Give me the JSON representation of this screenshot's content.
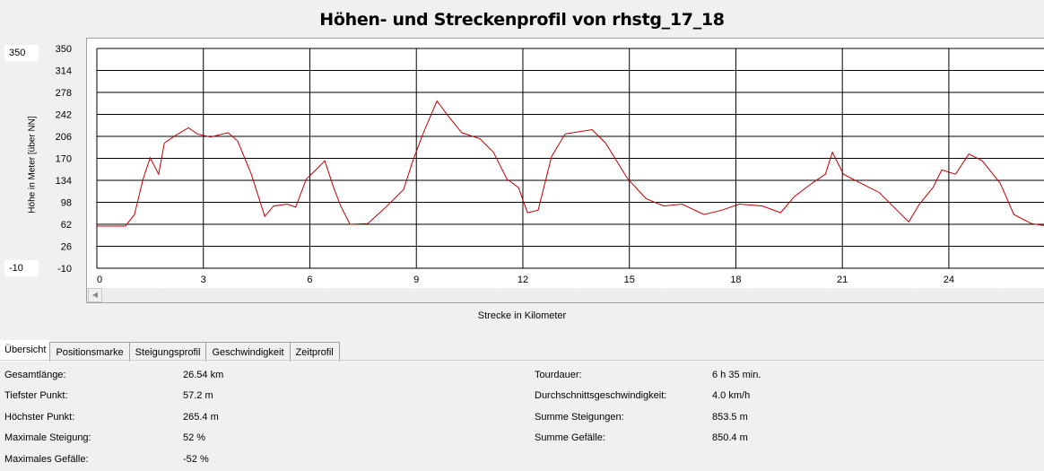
{
  "window": {
    "title": "Höhen- und Streckenprofil von rhstg_17_18"
  },
  "ybox_top": "350",
  "ybox_bottom": "-10",
  "chart_data": {
    "type": "line",
    "title": "Höhen- und Streckenprofil von rhstg_17_18",
    "xlabel": "Strecke in Kilometer",
    "ylabel": "Höhe in Meter [über NN]",
    "xlim": [
      0,
      26.68
    ],
    "ylim": [
      -10,
      350
    ],
    "xticks": [
      "0",
      "3",
      "6",
      "9",
      "12",
      "15",
      "18",
      "21",
      "24"
    ],
    "yticks": [
      "350",
      "314",
      "278",
      "242",
      "206",
      "170",
      "134",
      "98",
      "62",
      "26",
      "-10"
    ],
    "grid": true,
    "line_color": "#c00000",
    "series": [
      {
        "name": "Höhe",
        "x": [
          0,
          0.8,
          1.06,
          1.3,
          1.5,
          1.74,
          1.9,
          2.2,
          2.58,
          2.83,
          3.2,
          3.7,
          3.97,
          4.35,
          4.73,
          4.98,
          5.36,
          5.6,
          5.9,
          6.17,
          6.42,
          6.67,
          6.87,
          7.13,
          7.63,
          8.14,
          8.64,
          8.9,
          9.2,
          9.58,
          9.9,
          10.28,
          10.79,
          11.17,
          11.55,
          11.88,
          12.13,
          12.43,
          12.81,
          13.19,
          13.95,
          14.33,
          14.96,
          15.47,
          15.97,
          16.48,
          17.1,
          17.6,
          18.1,
          18.75,
          19.26,
          19.64,
          20.14,
          20.52,
          20.72,
          21.03,
          21.53,
          22.04,
          22.54,
          22.87,
          23.17,
          23.55,
          23.8,
          24.19,
          24.56,
          24.94,
          25.45,
          25.83,
          26.33,
          26.68
        ],
        "y": [
          59,
          59,
          78,
          136,
          171,
          144,
          195,
          207,
          220,
          210,
          205,
          212,
          198,
          144,
          75,
          92,
          95,
          90,
          136,
          151,
          166,
          122,
          92,
          62,
          63,
          90,
          119,
          166,
          212,
          264,
          239,
          212,
          202,
          180,
          136,
          122,
          81,
          85,
          173,
          210,
          217,
          195,
          136,
          104,
          92,
          95,
          78,
          85,
          95,
          92,
          81,
          107,
          129,
          144,
          180,
          144,
          129,
          114,
          85,
          66,
          95,
          122,
          151,
          144,
          177,
          166,
          129,
          78,
          63,
          60
        ]
      }
    ]
  },
  "tabs": [
    "Übersicht",
    "Positionsmarke",
    "Steigungsprofil",
    "Geschwindigkeit",
    "Zeitprofil"
  ],
  "stats_left": [
    {
      "label": "Gesamtlänge:",
      "value": "26.54 km"
    },
    {
      "label": "Tiefster Punkt:",
      "value": "57.2 m"
    },
    {
      "label": "Höchster Punkt:",
      "value": "265.4 m"
    },
    {
      "label": "Maximale Steigung:",
      "value": "52 %"
    },
    {
      "label": "Maximales Gefälle:",
      "value": "-52 %"
    }
  ],
  "stats_right": [
    {
      "label": "Tourdauer:",
      "value": "6 h 35 min."
    },
    {
      "label": "Durchschnittsgeschwindigkeit:",
      "value": "4.0 km/h"
    },
    {
      "label": "Summe Steigungen:",
      "value": "853.5 m"
    },
    {
      "label": "Summe Gefälle:",
      "value": "850.4 m"
    }
  ]
}
